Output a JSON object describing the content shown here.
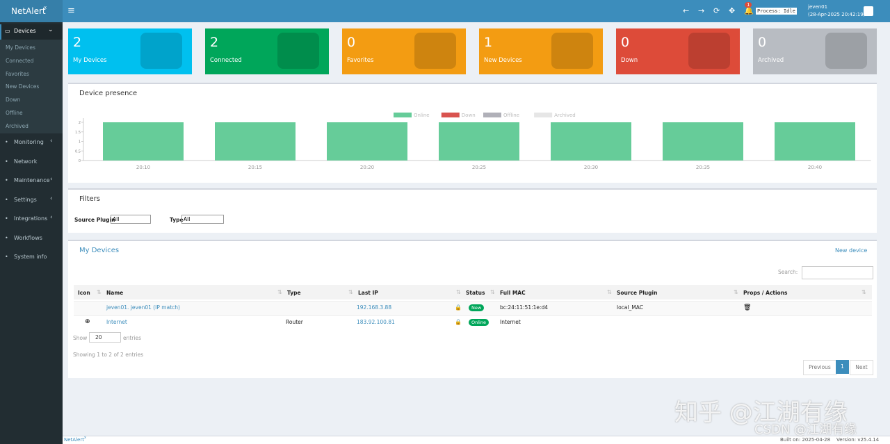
{
  "header": {
    "logo": "NetAlert",
    "logo_sup": "x",
    "notifications": 1,
    "process": "Process: Idle",
    "user": "jeven01",
    "timestamp": "(28-Apr-2025 20:42:19)"
  },
  "sidebar": {
    "active": "Devices",
    "submenu": [
      "My Devices",
      "Connected",
      "Favorites",
      "New Devices",
      "Down",
      "Offline",
      "Archived"
    ],
    "items": [
      "Monitoring",
      "Network",
      "Maintenance",
      "Settings",
      "Integrations",
      "Workflows",
      "System info"
    ]
  },
  "cards": [
    {
      "value": 2,
      "label": "My Devices",
      "color": "#00c0ef"
    },
    {
      "value": 2,
      "label": "Connected",
      "color": "#00a65a"
    },
    {
      "value": 0,
      "label": "Favorites",
      "color": "#f39c12"
    },
    {
      "value": 1,
      "label": "New Devices",
      "color": "#f39c12"
    },
    {
      "value": 0,
      "label": "Down",
      "color": "#dd4b39"
    },
    {
      "value": 0,
      "label": "Archived",
      "color": "#b8bcc2"
    }
  ],
  "chart_data": {
    "type": "bar",
    "stacked": true,
    "title": "Device presence",
    "categories": [
      "20:10",
      "20:15",
      "20:20",
      "20:25",
      "20:30",
      "20:35",
      "20:40"
    ],
    "series": [
      {
        "name": "Online",
        "color": "#66cc99",
        "values": [
          2,
          2,
          2,
          2,
          2,
          2,
          2
        ]
      },
      {
        "name": "Down",
        "color": "#d9534f",
        "values": [
          0,
          0,
          0,
          0,
          0,
          0,
          0
        ]
      },
      {
        "name": "Offline",
        "color": "#b0b0b8",
        "values": [
          0,
          0,
          0,
          0,
          0,
          0,
          0
        ]
      },
      {
        "name": "Archived",
        "color": "#e6e6e6",
        "values": [
          0,
          0,
          0,
          0,
          0,
          0,
          0
        ]
      }
    ],
    "ylim": [
      0,
      2
    ],
    "yticks": [
      0,
      0.5,
      1,
      1.5,
      2
    ],
    "legend": "top"
  },
  "filters": {
    "title": "Filters",
    "source_label": "Source Plugin",
    "source_value": "All",
    "type_label": "Type",
    "type_value": "All"
  },
  "devices": {
    "title": "My Devices",
    "new_button": "New device",
    "search_label": "Search:",
    "columns": [
      "Icon",
      "Name",
      "Type",
      "Last IP",
      "Status",
      "Full MAC",
      "Source Plugin",
      "Props / Actions"
    ],
    "rows": [
      {
        "name": "jeven01. jeven01 (IP match)",
        "last_ip": "192.168.3.88",
        "status": "New",
        "mac": "bc:24:11:51:1e:d4",
        "plugin": "local_MAC"
      },
      {
        "name": "Internet",
        "type": "Router",
        "last_ip": "183.92.100.81",
        "status": "Online",
        "mac": "Internet"
      }
    ],
    "show_label": "Show",
    "page_size": 20,
    "entries_label": "entries",
    "info": "Showing 1 to 2 of 2 entries",
    "prev": "Previous",
    "page": 1,
    "next": "Next"
  },
  "footer": {
    "brand": "NetAlert",
    "brand_sup": "x",
    "build": "Built on: 2025-04-28",
    "version": "Version: v25.4.14"
  },
  "watermarks": [
    "知乎 @江湖有缘",
    "CSDN @江湖有缘"
  ]
}
